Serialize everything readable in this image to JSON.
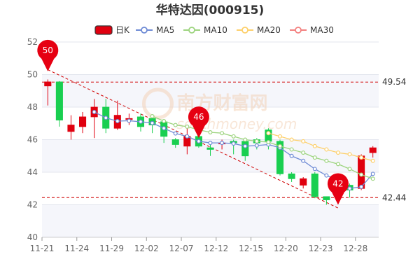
{
  "chart_data": {
    "type": "candlestick",
    "title": "华特达因(000915)",
    "legend": [
      "日K",
      "MA5",
      "MA10",
      "MA20",
      "MA30"
    ],
    "legend_position": "top-center",
    "ylim": [
      40,
      52
    ],
    "y_ticks": [
      "40",
      "42",
      "44",
      "46",
      "48",
      "50",
      "52"
    ],
    "x_ticks": [
      "11-21",
      "11-24",
      "11-29",
      "12-02",
      "12-07",
      "12-12",
      "12-15",
      "12-20",
      "12-23",
      "12-28"
    ],
    "x_tick_index": [
      0,
      3,
      6,
      9,
      12,
      15,
      18,
      21,
      24,
      27
    ],
    "grid": "horizontal",
    "colors": {
      "up": "#e0000f",
      "down": "#19cf50",
      "ma5": "#6e8bd5",
      "ma10": "#9dd47f",
      "ma20": "#fdd06b",
      "ma30": "#f3807f",
      "reference": "#d00000"
    },
    "candles": [
      {
        "date": "11-21",
        "open": 49.3,
        "close": 49.55,
        "high": 49.7,
        "low": 48.1
      },
      {
        "date": "11-22",
        "open": 49.55,
        "close": 47.2,
        "high": 49.6,
        "low": 46.8
      },
      {
        "date": "11-23",
        "open": 46.5,
        "close": 46.9,
        "high": 47.5,
        "low": 46.0
      },
      {
        "date": "11-24",
        "open": 46.8,
        "close": 47.4,
        "high": 47.7,
        "low": 46.4
      },
      {
        "date": "11-25",
        "open": 47.4,
        "close": 48.0,
        "high": 48.5,
        "low": 46.1
      },
      {
        "date": "11-28",
        "open": 48.0,
        "close": 46.7,
        "high": 48.5,
        "low": 46.4
      },
      {
        "date": "11-29",
        "open": 46.7,
        "close": 47.5,
        "high": 48.4,
        "low": 46.6
      },
      {
        "date": "11-30",
        "open": 47.3,
        "close": 47.3,
        "high": 47.6,
        "low": 46.9
      },
      {
        "date": "12-01",
        "open": 47.4,
        "close": 46.8,
        "high": 47.6,
        "low": 46.5
      },
      {
        "date": "12-02",
        "open": 47.3,
        "close": 46.9,
        "high": 47.4,
        "low": 46.4
      },
      {
        "date": "12-05",
        "open": 47.1,
        "close": 46.2,
        "high": 47.2,
        "low": 45.8
      },
      {
        "date": "12-06",
        "open": 46.0,
        "close": 45.7,
        "high": 46.1,
        "low": 45.5
      },
      {
        "date": "12-07",
        "open": 45.6,
        "close": 46.2,
        "high": 46.7,
        "low": 45.1
      },
      {
        "date": "12-08",
        "open": 46.2,
        "close": 45.6,
        "high": 46.2,
        "low": 45.5
      },
      {
        "date": "12-09",
        "open": 45.5,
        "close": 45.4,
        "high": 45.8,
        "low": 45.0
      },
      {
        "date": "12-12",
        "open": 45.8,
        "close": 45.8,
        "high": 46.0,
        "low": 45.4
      },
      {
        "date": "12-13",
        "open": 45.9,
        "close": 45.8,
        "high": 46.0,
        "low": 45.1
      },
      {
        "date": "12-14",
        "open": 45.9,
        "close": 45.0,
        "high": 46.0,
        "low": 44.7
      },
      {
        "date": "12-15",
        "open": 46.0,
        "close": 45.8,
        "high": 46.1,
        "low": 45.4
      },
      {
        "date": "12-16",
        "open": 46.6,
        "close": 45.9,
        "high": 46.7,
        "low": 45.4
      },
      {
        "date": "12-19",
        "open": 45.9,
        "close": 43.9,
        "high": 46.0,
        "low": 43.8
      },
      {
        "date": "12-20",
        "open": 43.9,
        "close": 43.6,
        "high": 44.0,
        "low": 43.4
      },
      {
        "date": "12-21",
        "open": 43.2,
        "close": 43.6,
        "high": 43.7,
        "low": 43.0
      },
      {
        "date": "12-22",
        "open": 43.9,
        "close": 42.5,
        "high": 44.0,
        "low": 42.4
      },
      {
        "date": "12-23",
        "open": 42.5,
        "close": 42.3,
        "high": 42.5,
        "low": 42.0
      },
      {
        "date": "12-26",
        "open": 42.5,
        "close": 42.9,
        "high": 43.0,
        "low": 42.1
      },
      {
        "date": "12-27",
        "open": 43.2,
        "close": 42.9,
        "high": 43.3,
        "low": 42.44
      },
      {
        "date": "12-28",
        "open": 43.0,
        "close": 45.0,
        "high": 45.1,
        "low": 42.9
      },
      {
        "date": "12-29",
        "open": 45.2,
        "close": 45.5,
        "high": 45.6,
        "low": 44.9
      }
    ],
    "series": [
      {
        "name": "MA5",
        "values": [
          null,
          null,
          null,
          null,
          47.7,
          47.34,
          47.14,
          47.16,
          47.1,
          47.02,
          46.7,
          46.38,
          46.2,
          45.9,
          45.8,
          45.8,
          45.76,
          45.6,
          45.64,
          45.7,
          45.5,
          45.0,
          44.7,
          44.2,
          43.8,
          43.5,
          43.0,
          43.1,
          43.9
        ]
      },
      {
        "name": "MA10",
        "values": [
          null,
          null,
          null,
          null,
          null,
          null,
          null,
          null,
          null,
          47.44,
          47.14,
          46.9,
          46.8,
          46.6,
          46.45,
          46.4,
          46.2,
          46.0,
          45.9,
          45.85,
          45.6,
          45.4,
          45.2,
          44.9,
          44.7,
          44.5,
          44.2,
          43.85,
          43.6
        ]
      },
      {
        "name": "MA20",
        "values": [
          null,
          null,
          null,
          null,
          null,
          null,
          null,
          null,
          null,
          null,
          null,
          null,
          null,
          null,
          null,
          null,
          null,
          null,
          null,
          46.4,
          46.2,
          46.0,
          45.9,
          45.6,
          45.4,
          45.2,
          45.1,
          44.9,
          44.7
        ]
      },
      {
        "name": "MA30",
        "values": []
      }
    ],
    "reference_lines": [
      {
        "value": 49.54,
        "label": "49.54"
      },
      {
        "value": 42.44,
        "label": "42.44"
      }
    ],
    "pins": [
      {
        "index": 0,
        "value": 50.2,
        "label": "50"
      },
      {
        "index": 13,
        "value": 46.1,
        "label": "46"
      },
      {
        "index": 25,
        "value": 42.0,
        "label": "42"
      }
    ],
    "trendline": {
      "from": {
        "index": 0,
        "value": 50.3
      },
      "to": {
        "index": 25,
        "value": 41.8
      }
    },
    "watermark": {
      "cn": "南方财富网",
      "en": "southmoney.com"
    }
  }
}
